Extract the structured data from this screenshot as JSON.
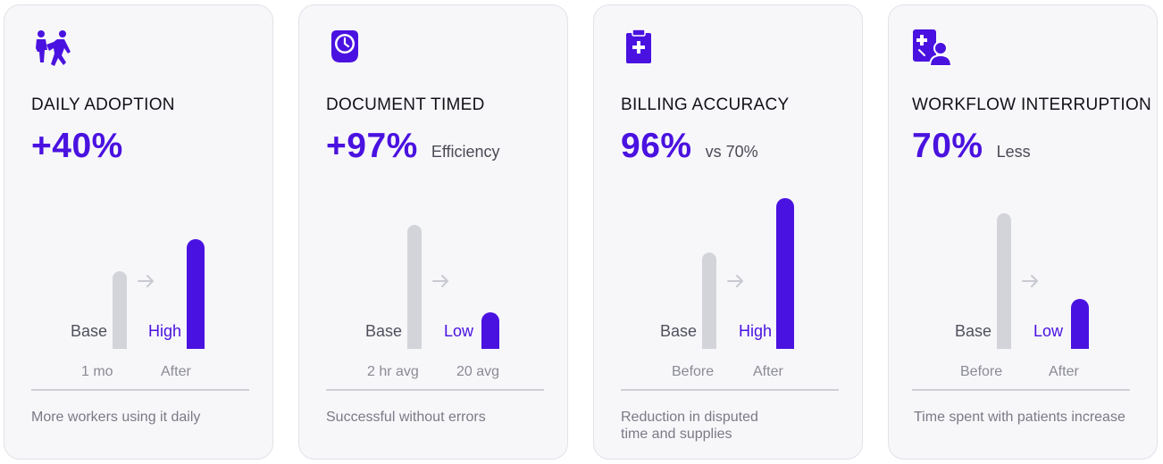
{
  "colors": {
    "accent": "#4a12e0",
    "base_bar": "#d2d4da",
    "card_bg": "#f7f7fa",
    "muted_text": "#7a7a86"
  },
  "cards": [
    {
      "icon": "people-running-icon",
      "title": "DAILY ADOPTION",
      "metric": "+40%",
      "suffix": "",
      "base_label": "Base",
      "after_label": "High",
      "base_tick": "1 mo",
      "after_tick": "After",
      "description": "More workers using it daily"
    },
    {
      "icon": "clock-icon",
      "title": "DOCUMENT TIMED",
      "metric": "+97%",
      "suffix": "Efficiency",
      "base_label": "Base",
      "after_label": "Low",
      "base_tick": "2 hr avg",
      "after_tick": "20 avg",
      "description": "Successful without errors"
    },
    {
      "icon": "medical-clipboard-icon",
      "title": "BILLING ACCURACY",
      "metric": "96%",
      "suffix": "vs 70%",
      "base_label": "Base",
      "after_label": "High",
      "base_tick": "Before",
      "after_tick": "After",
      "description": "Reduction in disputed time and supplies"
    },
    {
      "icon": "doctor-patient-icon",
      "title": "WORKFLOW INTERRUPTION",
      "metric": "70%",
      "suffix": "Less",
      "base_label": "Base",
      "after_label": "Low",
      "base_tick": "Before",
      "after_tick": "After",
      "description": "Time spent with patients increase"
    }
  ]
}
